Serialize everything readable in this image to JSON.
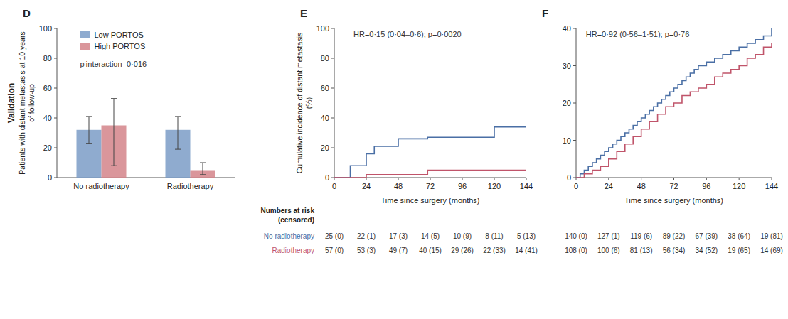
{
  "chart_data": [
    {
      "type": "bar",
      "title": "D",
      "y_label": "Patients with distant metastasis at 10 years of follow-up",
      "categories": [
        "No radiotherapy",
        "Radiotherapy"
      ],
      "series": [
        {
          "name": "Low PORTOS",
          "color": "#7b9cc7",
          "values": [
            32,
            32
          ],
          "error_minus": [
            9,
            13
          ],
          "error_plus": [
            9,
            9
          ]
        },
        {
          "name": "High PORTOS",
          "color": "#d4848a",
          "values": [
            35,
            5
          ],
          "error_minus": [
            27,
            3
          ],
          "error_plus": [
            18,
            5
          ]
        }
      ],
      "ylim": [
        0,
        100
      ],
      "yticks": [
        0,
        20,
        40,
        60,
        80,
        100
      ],
      "annotations": [
        "p interaction=0·016",
        "Validation"
      ],
      "legend": "upper left",
      "grid": false
    },
    {
      "type": "step",
      "title": "E",
      "y_label": "Cumulative incidence of distant metastasis (%)",
      "x_label": "Time since surgery (months)",
      "xlim": [
        0,
        144
      ],
      "xticks": [
        0,
        24,
        48,
        72,
        96,
        120,
        144
      ],
      "ylim": [
        0,
        100
      ],
      "yticks": [
        0,
        20,
        40,
        60,
        80,
        100
      ],
      "annotations": [
        "HR=0·15 (0·04–0·6); p=0·0020"
      ],
      "at_risk_title": [
        "Numbers at risk",
        "(censored)"
      ],
      "series": [
        {
          "name": "No radiotherapy",
          "color": "#4a6fa5",
          "x": [
            0,
            12,
            12,
            24,
            24,
            30,
            30,
            48,
            48,
            70,
            70,
            120,
            120,
            144
          ],
          "values": [
            0,
            0,
            8,
            8,
            16,
            16,
            21,
            21,
            26,
            26,
            27,
            27,
            34,
            34
          ],
          "at_risk": [
            "25 (0)",
            "22 (1)",
            "17 (3)",
            "14 (5)",
            "10 (9)",
            "8 (11)",
            "5 (13)"
          ]
        },
        {
          "name": "Radiotherapy",
          "color": "#c0546a",
          "x": [
            0,
            24,
            24,
            70,
            70,
            144
          ],
          "values": [
            0,
            0,
            2,
            2,
            5,
            5
          ],
          "at_risk": [
            "57 (0)",
            "53 (3)",
            "49 (7)",
            "40 (15)",
            "29 (26)",
            "22 (33)",
            "14 (41)"
          ]
        }
      ],
      "grid": false
    },
    {
      "type": "step",
      "title": "F",
      "x_label": "Time since surgery (months)",
      "xlim": [
        0,
        144
      ],
      "xticks": [
        0,
        24,
        48,
        72,
        96,
        120,
        144
      ],
      "ylim": [
        0,
        40
      ],
      "yticks": [
        0,
        10,
        20,
        30,
        40
      ],
      "annotations": [
        "HR=0·92 (0·56–1·51); p=0·76"
      ],
      "series": [
        {
          "color": "#4a6fa5",
          "x": [
            0,
            3,
            3,
            6,
            6,
            9,
            9,
            12,
            12,
            15,
            15,
            18,
            18,
            21,
            21,
            24,
            24,
            27,
            27,
            30,
            30,
            33,
            33,
            36,
            36,
            39,
            39,
            42,
            42,
            45,
            45,
            48,
            48,
            51,
            51,
            54,
            54,
            57,
            57,
            60,
            60,
            63,
            63,
            66,
            66,
            69,
            69,
            72,
            72,
            75,
            75,
            78,
            78,
            81,
            81,
            84,
            84,
            87,
            87,
            90,
            90,
            96,
            96,
            102,
            102,
            108,
            108,
            114,
            114,
            120,
            120,
            126,
            126,
            132,
            132,
            138,
            138,
            144
          ],
          "values": [
            0,
            0,
            1,
            1,
            2,
            2,
            3,
            3,
            4,
            4,
            5,
            5,
            6,
            6,
            7,
            7,
            8,
            8,
            9,
            9,
            10,
            10,
            11,
            11,
            12,
            12,
            13,
            13,
            14,
            14,
            15,
            15,
            16,
            16,
            17,
            17,
            18,
            18,
            19,
            19,
            20,
            20,
            21,
            21,
            22,
            22,
            23,
            23,
            24,
            24,
            25,
            25,
            26,
            26,
            27,
            27,
            28,
            28,
            29,
            29,
            30,
            30,
            31,
            31,
            32,
            32,
            33,
            33,
            34,
            34,
            35,
            35,
            36,
            36,
            37,
            37,
            38,
            40
          ],
          "at_risk": [
            "140 (0)",
            "127 (1)",
            "119 (6)",
            "89 (22)",
            "67 (39)",
            "38 (64)",
            "19 (81)"
          ]
        },
        {
          "color": "#c0546a",
          "x": [
            0,
            6,
            6,
            12,
            12,
            18,
            18,
            24,
            24,
            30,
            30,
            36,
            36,
            42,
            42,
            48,
            48,
            54,
            54,
            60,
            60,
            66,
            66,
            72,
            72,
            78,
            78,
            84,
            84,
            90,
            90,
            96,
            96,
            102,
            102,
            108,
            108,
            114,
            114,
            120,
            120,
            126,
            126,
            132,
            132,
            138,
            138,
            144
          ],
          "values": [
            0,
            0,
            1,
            1,
            2,
            2,
            3,
            3,
            5,
            5,
            7,
            7,
            9,
            9,
            11,
            11,
            13,
            13,
            15,
            15,
            17,
            17,
            19,
            19,
            20,
            20,
            22,
            22,
            23,
            23,
            24,
            24,
            25,
            25,
            27,
            27,
            28,
            28,
            29,
            29,
            30,
            30,
            32,
            32,
            33,
            33,
            35,
            36
          ],
          "at_risk": [
            "108 (0)",
            "100 (6)",
            "81 (13)",
            "56 (34)",
            "34 (52)",
            "19 (65)",
            "14 (69)"
          ]
        }
      ],
      "grid": false
    }
  ]
}
